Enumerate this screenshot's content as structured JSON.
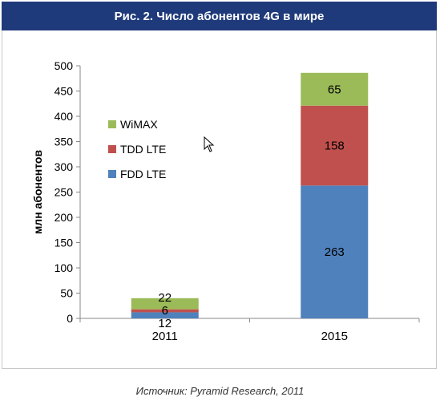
{
  "title": "Рис. 2. Число абонентов 4G в мире",
  "source": "Источник: Pyramid Research, 2011",
  "colors": {
    "title_bg": "#1f3a7a",
    "FDD LTE": "#4f81bd",
    "TDD LTE": "#c0504d",
    "WiMAX": "#9bbb59"
  },
  "chart_data": {
    "type": "bar",
    "stacked": true,
    "categories": [
      "2011",
      "2015"
    ],
    "series": [
      {
        "name": "FDD LTE",
        "values": [
          12,
          263
        ],
        "labels": [
          "12",
          "263"
        ]
      },
      {
        "name": "TDD LTE",
        "values": [
          6,
          158
        ],
        "labels": [
          "6",
          "158"
        ]
      },
      {
        "name": "WiMAX",
        "values": [
          22,
          65
        ],
        "labels": [
          "22",
          "65"
        ]
      }
    ],
    "legend_order": [
      "WiMAX",
      "TDD LTE",
      "FDD LTE"
    ],
    "ylabel": "млн абонентов",
    "ylim": [
      0,
      500
    ],
    "yticks": [
      0,
      50,
      100,
      150,
      200,
      250,
      300,
      350,
      400,
      450,
      500
    ],
    "legend_position": "left-inside",
    "grid": false
  }
}
